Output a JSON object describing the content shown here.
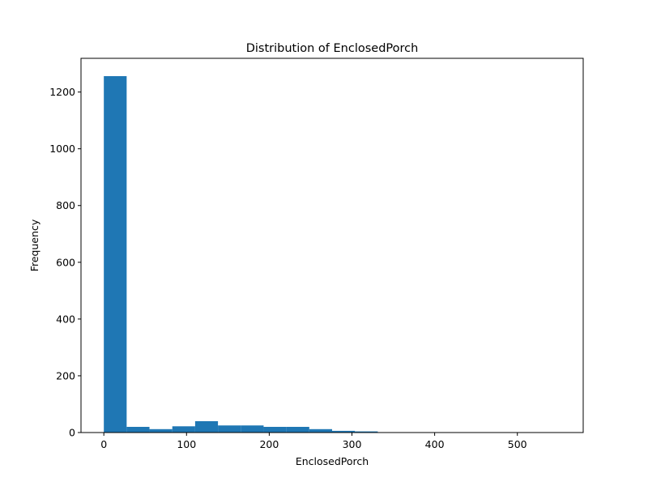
{
  "chart_data": {
    "type": "bar",
    "title": "Distribution of EnclosedPorch",
    "xlabel": "EnclosedPorch",
    "ylabel": "Frequency",
    "xlim": [
      -27.6,
      579.6
    ],
    "ylim": [
      0,
      1318.8
    ],
    "xticks": [
      0,
      100,
      200,
      300,
      400,
      500
    ],
    "yticks": [
      0,
      200,
      400,
      600,
      800,
      1000,
      1200
    ],
    "grid": false,
    "bar_color": "#1f77b4",
    "bin_edges": [
      0,
      27.6,
      55.2,
      82.8,
      110.4,
      138,
      165.6,
      193.2,
      220.8,
      248.4,
      276,
      303.6,
      331.2,
      358.8,
      386.4,
      414,
      441.6,
      469.2,
      496.8,
      524.4,
      552
    ],
    "values": [
      1256,
      20,
      12,
      22,
      40,
      25,
      25,
      20,
      20,
      12,
      6,
      4,
      0,
      0,
      0,
      0,
      0,
      0,
      0,
      1
    ]
  }
}
